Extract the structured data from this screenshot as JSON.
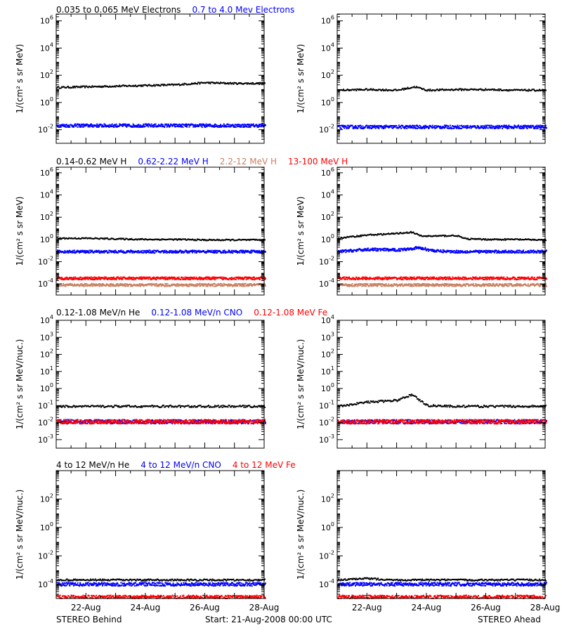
{
  "colors": {
    "black": "#000000",
    "blue": "#0000ff",
    "salmon": "#c88060",
    "red": "#ff0000"
  },
  "rows": [
    {
      "legend": [
        {
          "text": "0.035 to 0.065 MeV Electrons",
          "color": "#000000"
        },
        {
          "text": "0.7 to 4.0 Mev Electrons",
          "color": "#0000ff"
        }
      ],
      "ylabel": "1/(cm² s sr MeV)",
      "ylim_exp": [
        -3,
        6.5
      ],
      "ticks": [
        {
          "base": "10",
          "exp": "6"
        },
        {
          "base": "10",
          "exp": "4"
        },
        {
          "base": "10",
          "exp": "2"
        },
        {
          "base": "10",
          "exp": "0"
        },
        {
          "base": "10",
          "exp": "-2"
        }
      ]
    },
    {
      "legend": [
        {
          "text": "0.14-0.62 MeV H",
          "color": "#000000"
        },
        {
          "text": "0.62-2.22 MeV H",
          "color": "#0000ff"
        },
        {
          "text": "2.2-12 MeV H",
          "color": "#c88060"
        },
        {
          "text": "13-100 MeV H",
          "color": "#ff0000"
        }
      ],
      "ylabel": "1/(cm² s sr MeV)",
      "ylim_exp": [
        -5,
        6.5
      ],
      "ticks": [
        {
          "base": "10",
          "exp": "6"
        },
        {
          "base": "10",
          "exp": "4"
        },
        {
          "base": "10",
          "exp": "2"
        },
        {
          "base": "10",
          "exp": "0"
        },
        {
          "base": "10",
          "exp": "-2"
        },
        {
          "base": "10",
          "exp": "-4"
        }
      ]
    },
    {
      "legend": [
        {
          "text": "0.12-1.08 MeV/n He",
          "color": "#000000"
        },
        {
          "text": "0.12-1.08 MeV/n CNO",
          "color": "#0000ff"
        },
        {
          "text": "0.12-1.08 MeV Fe",
          "color": "#ff0000"
        }
      ],
      "ylabel": "1/(cm² s sr MeV/nuc.)",
      "ylim_exp": [
        -3.5,
        4
      ],
      "ticks": [
        {
          "base": "10",
          "exp": "4"
        },
        {
          "base": "10",
          "exp": "3"
        },
        {
          "base": "10",
          "exp": "2"
        },
        {
          "base": "10",
          "exp": "1"
        },
        {
          "base": "10",
          "exp": "0"
        },
        {
          "base": "10",
          "exp": "-1"
        },
        {
          "base": "10",
          "exp": "-2"
        },
        {
          "base": "10",
          "exp": "-3"
        }
      ]
    },
    {
      "legend": [
        {
          "text": "4 to 12 MeV/n He",
          "color": "#000000"
        },
        {
          "text": "4 to 12 MeV/n CNO",
          "color": "#0000ff"
        },
        {
          "text": "4 to 12 MeV Fe",
          "color": "#ff0000"
        }
      ],
      "ylabel": "1/(cm² s sr MeV/nuc.)",
      "ylim_exp": [
        -5,
        4
      ],
      "ticks": [
        {
          "base": "10",
          "exp": "2"
        },
        {
          "base": "10",
          "exp": "0"
        },
        {
          "base": "10",
          "exp": "-2"
        },
        {
          "base": "10",
          "exp": "-4"
        }
      ]
    }
  ],
  "xlim_days": [
    21,
    28
  ],
  "xticks": [
    {
      "day": 22,
      "label": "22-Aug"
    },
    {
      "day": 24,
      "label": "24-Aug"
    },
    {
      "day": 26,
      "label": "26-Aug"
    },
    {
      "day": 28,
      "label": "28-Aug"
    }
  ],
  "footer": {
    "left": "STEREO Behind",
    "center": "Start: 21-Aug-2008 00:00 UTC",
    "right": "STEREO Ahead"
  },
  "chart_data": [
    {
      "type": "scatter",
      "panel": "row1-behind",
      "series": [
        {
          "name": "0.035 to 0.065 MeV Electrons",
          "color": "#000000",
          "x": [
            21,
            22,
            23,
            24,
            25,
            26,
            27,
            28
          ],
          "y_log10": [
            1.1,
            1.15,
            1.2,
            1.25,
            1.3,
            1.45,
            1.4,
            1.4
          ]
        },
        {
          "name": "0.7 to 4.0 Mev Electrons",
          "color": "#0000ff",
          "x": [
            21,
            22,
            23,
            24,
            25,
            26,
            27,
            28
          ],
          "y_log10": [
            -1.7,
            -1.7,
            -1.7,
            -1.7,
            -1.7,
            -1.7,
            -1.7,
            -1.7
          ]
        }
      ]
    },
    {
      "type": "scatter",
      "panel": "row1-ahead",
      "series": [
        {
          "name": "0.035 to 0.065 MeV Electrons",
          "color": "#000000",
          "x": [
            21,
            22,
            23,
            23.6,
            24,
            25,
            26,
            27,
            28
          ],
          "y_log10": [
            0.9,
            0.95,
            0.9,
            1.15,
            0.9,
            0.95,
            0.95,
            0.9,
            0.9
          ]
        },
        {
          "name": "0.7 to 4.0 Mev Electrons",
          "color": "#0000ff",
          "x": [
            21,
            22,
            23,
            24,
            25,
            26,
            27,
            28
          ],
          "y_log10": [
            -1.8,
            -1.8,
            -1.8,
            -1.8,
            -1.8,
            -1.8,
            -1.8,
            -1.8
          ]
        }
      ]
    },
    {
      "type": "scatter",
      "panel": "row2-behind",
      "series": [
        {
          "name": "0.14-0.62 MeV H",
          "color": "#000000",
          "x": [
            21,
            22,
            23,
            24,
            25,
            26,
            27,
            28
          ],
          "y_log10": [
            0.1,
            0.1,
            0.05,
            0.0,
            0.0,
            -0.05,
            -0.05,
            -0.05
          ]
        },
        {
          "name": "0.62-2.22 MeV H",
          "color": "#0000ff",
          "x": [
            21,
            22,
            23,
            24,
            25,
            26,
            27,
            28
          ],
          "y_log10": [
            -1.1,
            -1.1,
            -1.1,
            -1.1,
            -1.1,
            -1.1,
            -1.1,
            -1.1
          ]
        },
        {
          "name": "2.2-12 MeV H",
          "color": "#c88060",
          "x": [
            21,
            22,
            23,
            24,
            25,
            26,
            27,
            28
          ],
          "y_log10": [
            -4.1,
            -4.1,
            -4.1,
            -4.1,
            -4.1,
            -4.1,
            -4.1,
            -4.1
          ]
        },
        {
          "name": "13-100 MeV H",
          "color": "#ff0000",
          "x": [
            21,
            22,
            23,
            24,
            25,
            26,
            27,
            28
          ],
          "y_log10": [
            -3.5,
            -3.5,
            -3.5,
            -3.5,
            -3.5,
            -3.5,
            -3.5,
            -3.5
          ]
        }
      ]
    },
    {
      "type": "scatter",
      "panel": "row2-ahead",
      "series": [
        {
          "name": "0.14-0.62 MeV H",
          "color": "#000000",
          "x": [
            21,
            22,
            22.8,
            23.5,
            23.8,
            24.2,
            25,
            25.3,
            26,
            27,
            28
          ],
          "y_log10": [
            0.1,
            0.4,
            0.5,
            0.65,
            0.3,
            0.3,
            0.35,
            0.05,
            0.0,
            0.0,
            -0.05
          ]
        },
        {
          "name": "0.62-2.22 MeV H",
          "color": "#0000ff",
          "x": [
            21,
            22,
            23,
            23.7,
            24.3,
            25,
            26,
            27,
            28
          ],
          "y_log10": [
            -1.1,
            -0.9,
            -0.95,
            -0.75,
            -1.05,
            -1.1,
            -1.1,
            -1.1,
            -1.1
          ]
        },
        {
          "name": "2.2-12 MeV H",
          "color": "#c88060",
          "x": [
            21,
            22,
            23,
            24,
            25,
            26,
            27,
            28
          ],
          "y_log10": [
            -4.1,
            -4.1,
            -4.1,
            -4.1,
            -4.1,
            -4.1,
            -4.1,
            -4.1
          ]
        },
        {
          "name": "13-100 MeV H",
          "color": "#ff0000",
          "x": [
            21,
            22,
            23,
            24,
            25,
            26,
            27,
            28
          ],
          "y_log10": [
            -3.5,
            -3.5,
            -3.5,
            -3.5,
            -3.5,
            -3.5,
            -3.5,
            -3.5
          ]
        }
      ]
    },
    {
      "type": "scatter",
      "panel": "row3-behind",
      "series": [
        {
          "name": "0.12-1.08 MeV/n He",
          "color": "#000000",
          "x": [
            21,
            22,
            23,
            24,
            25,
            26,
            27,
            28
          ],
          "y_log10": [
            -1.05,
            -1.05,
            -1.05,
            -1.05,
            -1.05,
            -1.05,
            -1.05,
            -1.05
          ]
        },
        {
          "name": "0.12-1.08 MeV/n CNO",
          "color": "#0000ff",
          "x": [
            21,
            22,
            23,
            24,
            25,
            26,
            27,
            28
          ],
          "y_log10": [
            -1.95,
            -1.95,
            -1.95,
            -1.95,
            -1.95,
            -1.95,
            -1.95,
            -1.95
          ]
        },
        {
          "name": "0.12-1.08 MeV Fe",
          "color": "#ff0000",
          "x": [
            21,
            22,
            23,
            24,
            25,
            26,
            27,
            28
          ],
          "y_log10": [
            -1.95,
            -1.95,
            -1.95,
            -1.95,
            -1.95,
            -1.95,
            -1.95,
            -1.95
          ]
        }
      ]
    },
    {
      "type": "scatter",
      "panel": "row3-ahead",
      "series": [
        {
          "name": "0.12-1.08 MeV/n He",
          "color": "#000000",
          "x": [
            21,
            22,
            23,
            23.5,
            24,
            25,
            26,
            27,
            28
          ],
          "y_log10": [
            -1.05,
            -0.8,
            -0.7,
            -0.35,
            -1.0,
            -1.05,
            -1.05,
            -1.05,
            -1.05
          ]
        },
        {
          "name": "0.12-1.08 MeV/n CNO",
          "color": "#0000ff",
          "x": [
            21,
            22,
            23,
            24,
            25,
            26,
            27,
            28
          ],
          "y_log10": [
            -1.95,
            -1.95,
            -1.95,
            -1.95,
            -1.95,
            -1.95,
            -1.95,
            -1.95
          ]
        },
        {
          "name": "0.12-1.08 MeV Fe",
          "color": "#ff0000",
          "x": [
            21,
            22,
            23,
            24,
            25,
            26,
            27,
            28
          ],
          "y_log10": [
            -1.95,
            -1.95,
            -1.95,
            -1.95,
            -1.95,
            -1.95,
            -1.95,
            -1.95
          ]
        }
      ]
    },
    {
      "type": "scatter",
      "panel": "row4-behind",
      "series": [
        {
          "name": "4 to 12 MeV/n He",
          "color": "#000000",
          "x": [
            21,
            22,
            23,
            24,
            25,
            26,
            27,
            28
          ],
          "y_log10": [
            -3.7,
            -3.7,
            -3.7,
            -3.7,
            -3.7,
            -3.7,
            -3.7,
            -3.7
          ]
        },
        {
          "name": "4 to 12 MeV/n CNO",
          "color": "#0000ff",
          "x": [
            21,
            22,
            23,
            24,
            25,
            26,
            27,
            28
          ],
          "y_log10": [
            -4.0,
            -4.0,
            -4.0,
            -4.0,
            -4.0,
            -4.0,
            -4.0,
            -4.0
          ]
        },
        {
          "name": "4 to 12 MeV Fe",
          "color": "#ff0000",
          "x": [
            21,
            22,
            23,
            24,
            25,
            26,
            27,
            28
          ],
          "y_log10": [
            -4.9,
            -4.9,
            -4.9,
            -4.9,
            -4.9,
            -4.9,
            -4.9,
            -4.9
          ]
        }
      ]
    },
    {
      "type": "scatter",
      "panel": "row4-ahead",
      "series": [
        {
          "name": "4 to 12 MeV/n He",
          "color": "#000000",
          "x": [
            21,
            22,
            23,
            24,
            25,
            26,
            27,
            28
          ],
          "y_log10": [
            -3.7,
            -3.6,
            -3.7,
            -3.7,
            -3.7,
            -3.7,
            -3.7,
            -3.7
          ]
        },
        {
          "name": "4 to 12 MeV/n CNO",
          "color": "#0000ff",
          "x": [
            21,
            22,
            23,
            24,
            25,
            26,
            27,
            28
          ],
          "y_log10": [
            -4.0,
            -4.0,
            -4.0,
            -4.0,
            -4.0,
            -4.0,
            -4.0,
            -4.0
          ]
        },
        {
          "name": "4 to 12 MeV Fe",
          "color": "#ff0000",
          "x": [
            21,
            22,
            23,
            24,
            25,
            26,
            27,
            28
          ],
          "y_log10": [
            -4.9,
            -4.9,
            -4.9,
            -4.9,
            -4.9,
            -4.9,
            -4.9,
            -4.9
          ]
        }
      ]
    }
  ]
}
